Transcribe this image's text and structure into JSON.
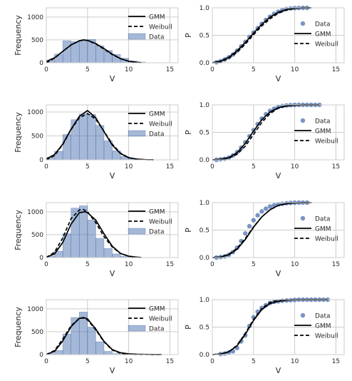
{
  "style": {
    "grid_color": "#cccccc",
    "axes_edge_color": "#cccccc",
    "hist_fill": "#4c72b0",
    "hist_alpha": 0.5,
    "scatter_color": "#4c72b0",
    "gmm_color": "#000000",
    "weibull_color": "#000000"
  },
  "labels": {
    "xlabel": "V",
    "ylabel_hist": "Frequency",
    "ylabel_cdf": "P"
  },
  "legend": {
    "hist": [
      "GMM",
      "Weibull",
      "Data"
    ],
    "cdf": [
      "Data",
      "GMM",
      "Weibull"
    ]
  },
  "chart_data": [
    {
      "row": 1,
      "type": "bar",
      "subtype": "histogram-with-fits",
      "xlim": [
        0,
        16
      ],
      "ylim": [
        0,
        1200
      ],
      "xticks": [
        0,
        5,
        10,
        15
      ],
      "yticks": [
        0,
        500,
        1000
      ],
      "grid": true,
      "legend_position": "upper right",
      "bin_edges": [
        0,
        1,
        2,
        3,
        4,
        5,
        6,
        7,
        8,
        9,
        10,
        11,
        12
      ],
      "values": [
        50,
        190,
        480,
        460,
        490,
        510,
        370,
        270,
        180,
        100,
        40,
        15
      ],
      "series": [
        {
          "name": "GMM",
          "style": "solid",
          "x": [
            0,
            1,
            2,
            3,
            4,
            4.5,
            5,
            6,
            7,
            8,
            9,
            10,
            11,
            11.5
          ],
          "y": [
            30,
            110,
            250,
            390,
            480,
            500,
            490,
            420,
            310,
            190,
            90,
            35,
            10,
            3
          ]
        },
        {
          "name": "Weibull",
          "style": "dashed",
          "x": [
            0,
            1,
            2,
            3,
            4,
            4.5,
            5,
            6,
            7,
            8,
            9,
            10,
            11,
            11.5
          ],
          "y": [
            0,
            100,
            250,
            390,
            480,
            495,
            490,
            410,
            300,
            180,
            90,
            35,
            10,
            3
          ]
        }
      ]
    },
    {
      "row": 1,
      "type": "scatter",
      "subtype": "cdf",
      "xlim": [
        0,
        16
      ],
      "ylim": [
        0,
        1
      ],
      "xticks": [
        0,
        5,
        10,
        15
      ],
      "yticks": [
        0.0,
        0.5,
        1.0
      ],
      "grid": true,
      "legend_position": "right",
      "points": {
        "x": [
          0.5,
          1,
          1.5,
          2,
          2.5,
          3,
          3.5,
          4,
          4.5,
          5,
          5.5,
          6,
          6.5,
          7,
          7.5,
          8,
          8.5,
          9,
          9.5,
          10,
          10.5,
          11,
          11.5
        ],
        "y": [
          0.01,
          0.03,
          0.06,
          0.1,
          0.15,
          0.22,
          0.3,
          0.38,
          0.47,
          0.55,
          0.63,
          0.71,
          0.78,
          0.84,
          0.89,
          0.93,
          0.96,
          0.98,
          0.99,
          0.995,
          0.998,
          1.0,
          1.0
        ]
      },
      "series": [
        {
          "name": "GMM",
          "style": "solid",
          "x": [
            0,
            1,
            2,
            3,
            4,
            5,
            6,
            7,
            8,
            9,
            10,
            11,
            12
          ],
          "y": [
            0,
            0.03,
            0.1,
            0.22,
            0.37,
            0.54,
            0.7,
            0.83,
            0.92,
            0.97,
            0.99,
            1.0,
            1.0
          ]
        },
        {
          "name": "Weibull",
          "style": "dashed",
          "x": [
            0,
            1,
            2,
            3,
            4,
            5,
            6,
            7,
            8,
            9,
            10,
            11,
            12
          ],
          "y": [
            0,
            0.02,
            0.08,
            0.19,
            0.34,
            0.51,
            0.67,
            0.8,
            0.9,
            0.96,
            0.99,
            1.0,
            1.0
          ]
        }
      ]
    },
    {
      "row": 2,
      "type": "bar",
      "subtype": "histogram-with-fits",
      "xlim": [
        0,
        16
      ],
      "ylim": [
        0,
        1150
      ],
      "xticks": [
        0,
        5,
        10,
        15
      ],
      "yticks": [
        0,
        500,
        1000
      ],
      "grid": true,
      "legend_position": "upper right",
      "bin_edges": [
        0,
        1,
        2,
        3,
        4,
        5,
        6,
        7,
        8,
        9,
        10,
        11,
        12,
        13
      ],
      "values": [
        50,
        180,
        530,
        840,
        960,
        950,
        720,
        400,
        190,
        70,
        25,
        10,
        4
      ],
      "series": [
        {
          "name": "GMM",
          "style": "solid",
          "x": [
            0,
            1,
            2,
            3,
            4,
            5,
            6,
            7,
            8,
            9,
            10,
            11,
            12,
            13
          ],
          "y": [
            20,
            110,
            330,
            640,
            910,
            1030,
            880,
            590,
            310,
            130,
            45,
            15,
            5,
            2
          ]
        },
        {
          "name": "Weibull",
          "style": "dashed",
          "x": [
            0,
            1,
            2,
            3,
            4,
            5,
            6,
            7,
            8,
            9,
            10,
            11,
            12,
            13
          ],
          "y": [
            0,
            90,
            320,
            630,
            880,
            970,
            850,
            600,
            330,
            140,
            45,
            12,
            3,
            1
          ]
        }
      ]
    },
    {
      "row": 2,
      "type": "scatter",
      "subtype": "cdf",
      "xlim": [
        0,
        16
      ],
      "ylim": [
        0,
        1
      ],
      "xticks": [
        0,
        5,
        10,
        15
      ],
      "yticks": [
        0.0,
        0.5,
        1.0
      ],
      "grid": true,
      "legend_position": "right",
      "points": {
        "x": [
          0.5,
          1,
          1.5,
          2,
          2.5,
          3,
          3.5,
          4,
          4.5,
          5,
          5.5,
          6,
          6.5,
          7,
          7.5,
          8,
          8.5,
          9,
          9.5,
          10,
          10.5,
          11,
          11.5,
          12,
          12.5,
          13
        ],
        "y": [
          0.0,
          0.01,
          0.02,
          0.04,
          0.08,
          0.14,
          0.22,
          0.32,
          0.43,
          0.54,
          0.65,
          0.75,
          0.83,
          0.89,
          0.93,
          0.96,
          0.98,
          0.99,
          0.995,
          1.0,
          1.0,
          1.0,
          1.0,
          1.0,
          1.0,
          1.0
        ]
      },
      "series": [
        {
          "name": "GMM",
          "style": "solid",
          "x": [
            0,
            1,
            2,
            3,
            4,
            5,
            6,
            7,
            8,
            9,
            10,
            11,
            12,
            13
          ],
          "y": [
            0,
            0.01,
            0.04,
            0.13,
            0.3,
            0.52,
            0.73,
            0.87,
            0.95,
            0.98,
            0.99,
            1.0,
            1.0,
            1.0
          ]
        },
        {
          "name": "Weibull",
          "style": "dashed",
          "x": [
            0,
            1,
            2,
            3,
            4,
            5,
            6,
            7,
            8,
            9,
            10,
            11,
            12,
            13
          ],
          "y": [
            0,
            0.01,
            0.03,
            0.1,
            0.25,
            0.46,
            0.68,
            0.84,
            0.94,
            0.98,
            0.995,
            1.0,
            1.0,
            1.0
          ]
        }
      ]
    },
    {
      "row": 3,
      "type": "bar",
      "subtype": "histogram-with-fits",
      "xlim": [
        0,
        16
      ],
      "ylim": [
        0,
        1200
      ],
      "xticks": [
        0,
        5,
        10,
        15
      ],
      "yticks": [
        0,
        500,
        1000
      ],
      "grid": true,
      "legend_position": "upper right",
      "bin_edges": [
        0,
        1,
        2,
        3,
        4,
        5,
        6,
        7,
        8,
        9,
        10,
        11,
        12
      ],
      "values": [
        30,
        140,
        520,
        1080,
        1130,
        820,
        420,
        200,
        80,
        30,
        10,
        4
      ],
      "series": [
        {
          "name": "GMM",
          "style": "solid",
          "x": [
            0,
            1,
            2,
            3,
            4,
            4.7,
            5,
            6,
            7,
            8,
            9,
            10,
            11,
            11.5
          ],
          "y": [
            10,
            80,
            330,
            730,
            980,
            1000,
            980,
            820,
            520,
            250,
            90,
            30,
            8,
            2
          ]
        },
        {
          "name": "Weibull",
          "style": "dashed",
          "x": [
            0,
            1,
            2,
            3,
            4,
            4.5,
            5,
            6,
            7,
            8,
            9,
            10,
            11,
            11.5
          ],
          "y": [
            0,
            120,
            430,
            850,
            1040,
            1050,
            1000,
            760,
            460,
            230,
            90,
            30,
            8,
            2
          ]
        }
      ]
    },
    {
      "row": 3,
      "type": "scatter",
      "subtype": "cdf",
      "xlim": [
        0,
        16
      ],
      "ylim": [
        0,
        1
      ],
      "xticks": [
        0,
        5,
        10,
        15
      ],
      "yticks": [
        0.0,
        0.5,
        1.0
      ],
      "grid": true,
      "legend_position": "right",
      "points": {
        "x": [
          0.5,
          1,
          1.5,
          2,
          2.5,
          3,
          3.5,
          4,
          4.5,
          5,
          5.5,
          6,
          6.5,
          7,
          7.5,
          8,
          8.5,
          9,
          9.5,
          10,
          10.5,
          11,
          11.5
        ],
        "y": [
          0.0,
          0.01,
          0.02,
          0.05,
          0.1,
          0.18,
          0.3,
          0.44,
          0.57,
          0.68,
          0.77,
          0.84,
          0.89,
          0.93,
          0.95,
          0.97,
          0.98,
          0.99,
          0.995,
          1.0,
          1.0,
          1.0,
          1.0
        ]
      },
      "series": [
        {
          "name": "GMM",
          "style": "solid",
          "x": [
            0,
            1,
            2,
            3,
            4,
            5,
            6,
            7,
            8,
            9,
            10,
            11,
            12
          ],
          "y": [
            0,
            0.01,
            0.05,
            0.15,
            0.33,
            0.55,
            0.74,
            0.87,
            0.95,
            0.98,
            0.995,
            1.0,
            1.0
          ]
        },
        {
          "name": "Weibull",
          "style": "dashed",
          "x": [
            0,
            1,
            2,
            3,
            4,
            5,
            6,
            7,
            8,
            9,
            10,
            11,
            12
          ],
          "y": [
            0,
            0.01,
            0.06,
            0.17,
            0.35,
            0.56,
            0.74,
            0.87,
            0.95,
            0.98,
            0.995,
            1.0,
            1.0
          ]
        }
      ]
    },
    {
      "row": 4,
      "type": "bar",
      "subtype": "histogram-with-fits",
      "xlim": [
        0,
        16
      ],
      "ylim": [
        0,
        1200
      ],
      "xticks": [
        0,
        5,
        10,
        15
      ],
      "yticks": [
        0,
        500,
        1000
      ],
      "grid": true,
      "legend_position": "upper right",
      "bin_edges": [
        0,
        1,
        2,
        3,
        4,
        5,
        6,
        7,
        8,
        9,
        10,
        11,
        12,
        13,
        14
      ],
      "values": [
        20,
        90,
        450,
        810,
        930,
        600,
        280,
        70,
        20,
        8,
        4,
        2,
        1,
        1
      ],
      "series": [
        {
          "name": "GMM",
          "style": "solid",
          "x": [
            0,
            1,
            2,
            3,
            4,
            4.5,
            5,
            6,
            7,
            8,
            9,
            10,
            11,
            12,
            13,
            14
          ],
          "y": [
            5,
            70,
            300,
            610,
            790,
            810,
            780,
            560,
            290,
            110,
            40,
            15,
            8,
            4,
            2,
            1
          ]
        },
        {
          "name": "Weibull",
          "style": "dashed",
          "x": [
            0,
            1,
            2,
            3,
            4,
            4.5,
            5,
            6,
            7,
            8,
            9,
            10,
            11,
            12,
            13,
            14
          ],
          "y": [
            0,
            90,
            340,
            630,
            790,
            800,
            760,
            540,
            280,
            100,
            30,
            8,
            2,
            1,
            0,
            0
          ]
        }
      ]
    },
    {
      "row": 4,
      "type": "scatter",
      "subtype": "cdf",
      "xlim": [
        0,
        16
      ],
      "ylim": [
        0,
        1
      ],
      "xticks": [
        0,
        5,
        10,
        15
      ],
      "yticks": [
        0.0,
        0.5,
        1.0
      ],
      "grid": true,
      "legend_position": "right",
      "points": {
        "x": [
          1,
          1.5,
          2,
          2.5,
          3,
          3.5,
          4,
          4.5,
          5,
          5.5,
          6,
          6.5,
          7,
          7.5,
          8,
          8.5,
          9,
          9.5,
          10,
          10.5,
          11,
          11.5,
          12,
          12.5,
          13,
          13.5,
          14
        ],
        "y": [
          0.01,
          0.02,
          0.04,
          0.06,
          0.12,
          0.24,
          0.35,
          0.52,
          0.68,
          0.78,
          0.85,
          0.9,
          0.94,
          0.96,
          0.97,
          0.98,
          0.985,
          0.99,
          0.995,
          1.0,
          1.0,
          1.0,
          1.0,
          1.0,
          1.0,
          1.0,
          1.0
        ]
      },
      "series": [
        {
          "name": "GMM",
          "style": "solid",
          "x": [
            0,
            1,
            2,
            3,
            4,
            5,
            6,
            7,
            8,
            9,
            10,
            11,
            12,
            14
          ],
          "y": [
            0,
            0.01,
            0.05,
            0.16,
            0.37,
            0.62,
            0.82,
            0.93,
            0.97,
            0.99,
            1.0,
            1.0,
            1.0,
            1.0
          ]
        },
        {
          "name": "Weibull",
          "style": "dashed",
          "x": [
            0,
            1,
            2,
            3,
            4,
            5,
            6,
            7,
            8,
            9,
            10,
            11,
            12,
            14
          ],
          "y": [
            0,
            0.01,
            0.05,
            0.17,
            0.39,
            0.64,
            0.84,
            0.95,
            0.99,
            1.0,
            1.0,
            1.0,
            1.0,
            1.0
          ]
        }
      ]
    }
  ]
}
